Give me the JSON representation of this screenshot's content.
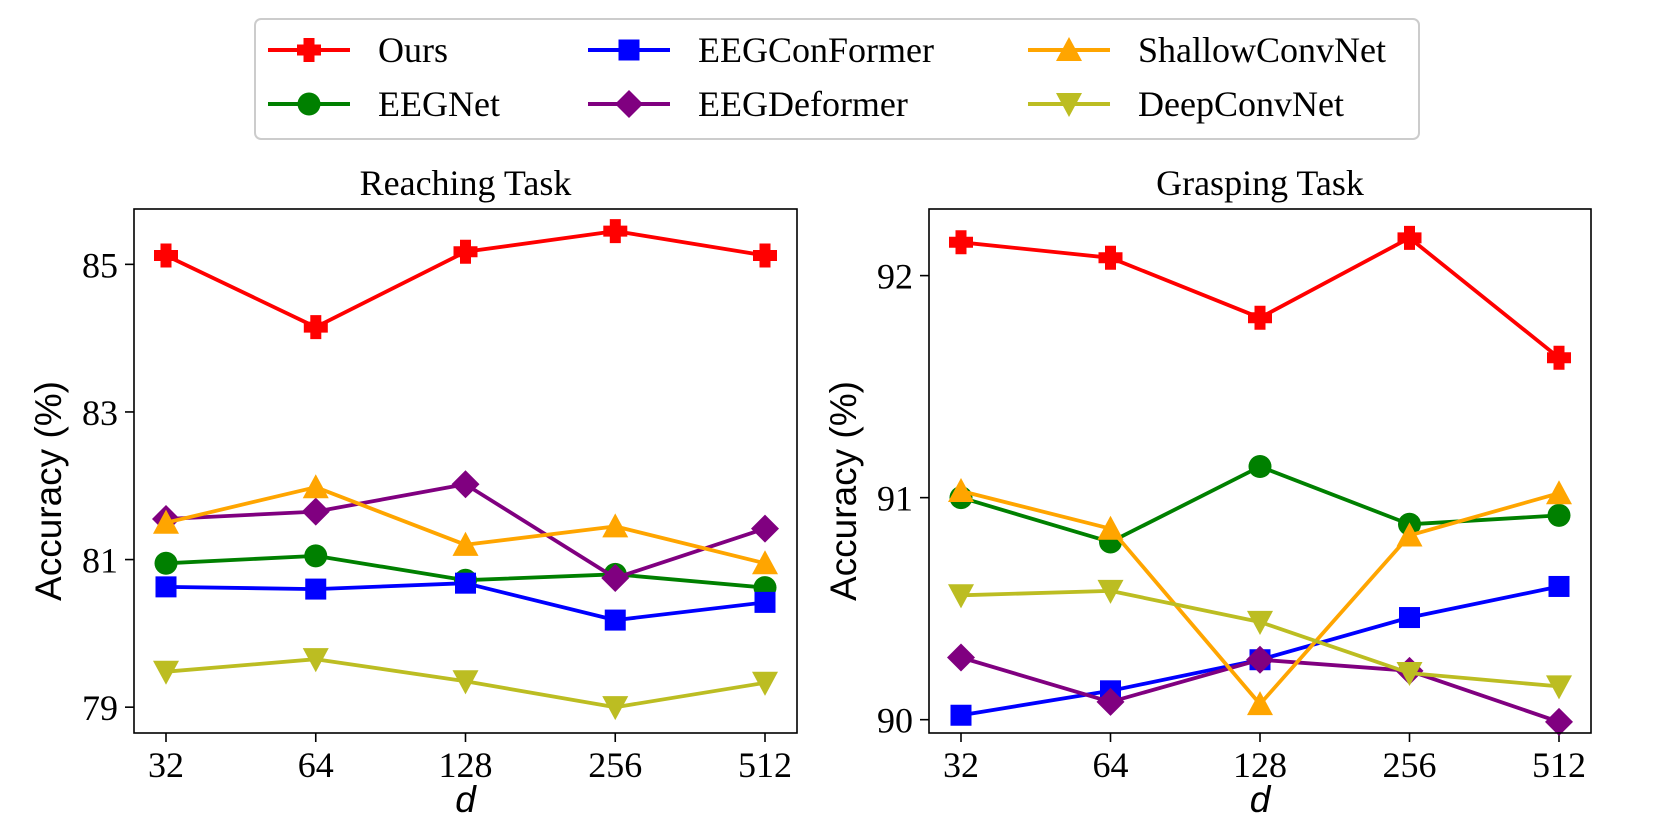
{
  "legend": [
    {
      "name": "Ours",
      "color": "#ff0000",
      "marker": "plus"
    },
    {
      "name": "EEGConFormer",
      "color": "#0000ff",
      "marker": "square"
    },
    {
      "name": "ShallowConvNet",
      "color": "#ffa500",
      "marker": "triangle-up"
    },
    {
      "name": "EEGNet",
      "color": "#008000",
      "marker": "circle"
    },
    {
      "name": "EEGDeformer",
      "color": "#800080",
      "marker": "diamond"
    },
    {
      "name": "DeepConvNet",
      "color": "#bcbd22",
      "marker": "triangle-down"
    }
  ],
  "chart_data": [
    {
      "type": "line",
      "title": "Reaching Task",
      "xlabel": "d",
      "ylabel": "Accuracy (%)",
      "categories": [
        "32",
        "64",
        "128",
        "256",
        "512"
      ],
      "ylim": [
        78.65,
        85.75
      ],
      "yticks": [
        79,
        81,
        83,
        85
      ],
      "series": [
        {
          "name": "Ours",
          "color": "#ff0000",
          "marker": "plus",
          "values": [
            85.12,
            84.15,
            85.17,
            85.45,
            85.12
          ]
        },
        {
          "name": "EEGNet",
          "color": "#008000",
          "marker": "circle",
          "values": [
            80.95,
            81.05,
            80.72,
            80.8,
            80.62
          ]
        },
        {
          "name": "EEGConFormer",
          "color": "#0000ff",
          "marker": "square",
          "values": [
            80.63,
            80.6,
            80.68,
            80.18,
            80.42
          ]
        },
        {
          "name": "EEGDeformer",
          "color": "#800080",
          "marker": "diamond",
          "values": [
            81.55,
            81.65,
            82.02,
            80.75,
            81.42
          ]
        },
        {
          "name": "ShallowConvNet",
          "color": "#ffa500",
          "marker": "triangle-up",
          "values": [
            81.5,
            81.98,
            81.2,
            81.45,
            80.95
          ]
        },
        {
          "name": "DeepConvNet",
          "color": "#bcbd22",
          "marker": "triangle-down",
          "values": [
            79.48,
            79.65,
            79.35,
            79.0,
            79.33
          ]
        }
      ]
    },
    {
      "type": "line",
      "title": "Grasping Task",
      "xlabel": "d",
      "ylabel": "Accuracy (%)",
      "categories": [
        "32",
        "64",
        "128",
        "256",
        "512"
      ],
      "ylim": [
        89.94,
        92.3
      ],
      "yticks": [
        90,
        91,
        92
      ],
      "series": [
        {
          "name": "Ours",
          "color": "#ff0000",
          "marker": "plus",
          "values": [
            92.15,
            92.08,
            91.81,
            92.17,
            91.63
          ]
        },
        {
          "name": "EEGNet",
          "color": "#008000",
          "marker": "circle",
          "values": [
            91.0,
            90.8,
            91.14,
            90.88,
            90.92
          ]
        },
        {
          "name": "EEGConFormer",
          "color": "#0000ff",
          "marker": "square",
          "values": [
            90.02,
            90.13,
            90.27,
            90.46,
            90.6
          ]
        },
        {
          "name": "EEGDeformer",
          "color": "#800080",
          "marker": "diamond",
          "values": [
            90.28,
            90.08,
            90.27,
            90.22,
            89.99
          ]
        },
        {
          "name": "ShallowConvNet",
          "color": "#ffa500",
          "marker": "triangle-up",
          "values": [
            91.03,
            90.86,
            90.07,
            90.83,
            91.02
          ]
        },
        {
          "name": "DeepConvNet",
          "color": "#bcbd22",
          "marker": "triangle-down",
          "values": [
            90.56,
            90.58,
            90.44,
            90.21,
            90.15
          ]
        }
      ]
    }
  ]
}
